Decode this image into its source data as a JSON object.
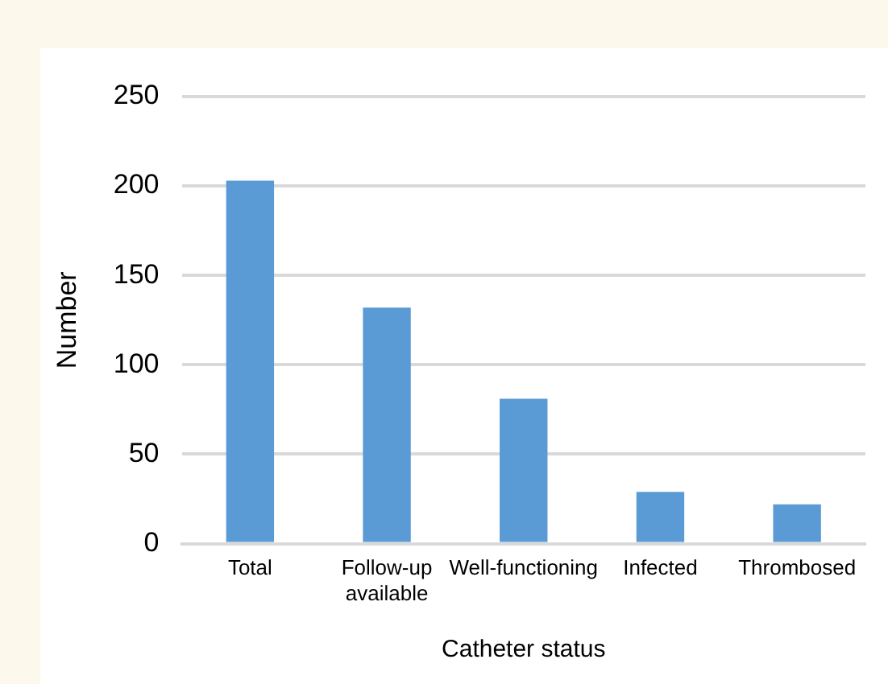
{
  "chart_data": {
    "type": "bar",
    "xlabel": "Catheter status",
    "ylabel": "Number",
    "categories": [
      "Total",
      "Follow-up available",
      "Well-functioning",
      "Infected",
      "Thrombosed"
    ],
    "values": [
      203,
      132,
      81,
      29,
      22
    ],
    "color": "#5b9bd5",
    "ylim": [
      0,
      250
    ],
    "yticks": [
      0,
      50,
      100,
      150,
      200,
      250
    ],
    "grid": "y"
  }
}
